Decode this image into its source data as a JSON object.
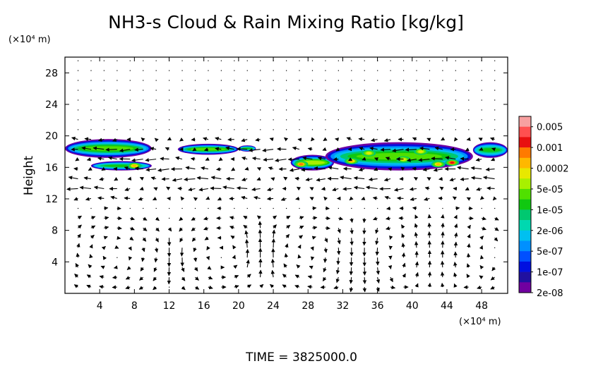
{
  "chart_data": {
    "type": "heatmap",
    "title": "NH3-s Cloud & Rain Mixing Ratio [kg/kg]",
    "ylabel": "Height",
    "x_unit": "(×10⁴ m)",
    "y_unit": "(×10⁴ m)",
    "xlim": [
      0,
      51
    ],
    "ylim": [
      0,
      30
    ],
    "x_ticks": [
      4,
      8,
      12,
      16,
      20,
      24,
      28,
      32,
      36,
      40,
      44,
      48
    ],
    "y_ticks": [
      4,
      8,
      12,
      16,
      20,
      24,
      28
    ],
    "colorbar": {
      "labels": [
        "0.005",
        "0.001",
        "0.0002",
        "5e-05",
        "1e-05",
        "2e-06",
        "5e-07",
        "1e-07",
        "2e-08"
      ],
      "colors": [
        "#f7a0a0",
        "#ff5050",
        "#e81010",
        "#ff7a00",
        "#ffb800",
        "#e8e800",
        "#a8f000",
        "#50e000",
        "#10c810",
        "#00c870",
        "#00d8b0",
        "#00c0f0",
        "#0090ff",
        "#0050ff",
        "#0010e0",
        "#2010a0",
        "#7000a0"
      ]
    },
    "cloud_regions": [
      {
        "x": [
          0,
          10
        ],
        "y": [
          17.2,
          19.6
        ],
        "level": 7
      },
      {
        "x": [
          13,
          20
        ],
        "y": [
          17.6,
          19.0
        ],
        "level": 7
      },
      {
        "x": [
          20,
          22
        ],
        "y": [
          18.0,
          18.8
        ],
        "level": 8
      },
      {
        "x": [
          26,
          31
        ],
        "y": [
          15.6,
          17.6
        ],
        "level": 6
      },
      {
        "x": [
          30,
          47
        ],
        "y": [
          15.6,
          19.2
        ],
        "level": 7
      },
      {
        "x": [
          47,
          51
        ],
        "y": [
          17.2,
          19.2
        ],
        "level": 8
      },
      {
        "x": [
          3,
          10
        ],
        "y": [
          15.6,
          16.8
        ],
        "level": 8
      }
    ],
    "cloud_cores": [
      {
        "x": 8,
        "y": 16.2,
        "level": 4
      },
      {
        "x": 27.2,
        "y": 16.4,
        "level": 3
      },
      {
        "x": 35,
        "y": 17.8,
        "level": 5
      },
      {
        "x": 39,
        "y": 17.0,
        "level": 5
      },
      {
        "x": 41,
        "y": 18.0,
        "level": 5
      },
      {
        "x": 43,
        "y": 16.4,
        "level": 4
      },
      {
        "x": 44.6,
        "y": 16.6,
        "level": 2
      },
      {
        "x": 33,
        "y": 16.8,
        "level": 4
      }
    ]
  },
  "footer": {
    "time_label": "TIME = 3825000.0"
  }
}
